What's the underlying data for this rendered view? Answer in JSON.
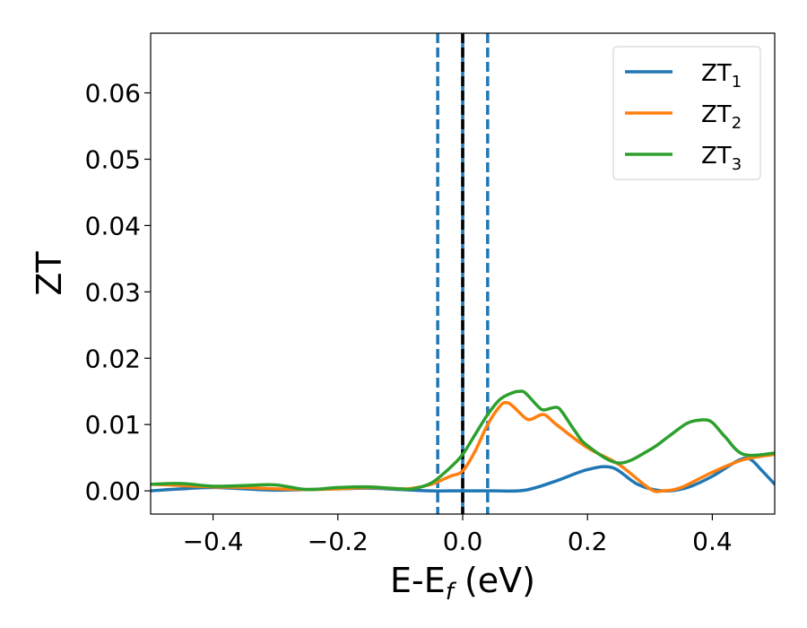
{
  "chart_data": {
    "type": "line",
    "title": "",
    "xlabel": "E-E",
    "xlabel_sub": "f",
    "xlabel_unit": " (eV)",
    "ylabel": "ZT",
    "xlim": [
      -0.5,
      0.5
    ],
    "ylim": [
      -0.0035,
      0.069
    ],
    "xticks": [
      -0.4,
      -0.2,
      0.0,
      0.2,
      0.4
    ],
    "xtick_labels": [
      "−0.4",
      "−0.2",
      "0.0",
      "0.2",
      "0.4"
    ],
    "yticks": [
      0.0,
      0.01,
      0.02,
      0.03,
      0.04,
      0.05,
      0.06
    ],
    "ytick_labels": [
      "0.00",
      "0.01",
      "0.02",
      "0.03",
      "0.04",
      "0.05",
      "0.06"
    ],
    "grid": false,
    "legend": "top-right",
    "vlines": [
      {
        "x": -0.04,
        "style": "dashed",
        "color": "#1f77b4"
      },
      {
        "x": 0.04,
        "style": "dashed",
        "color": "#1f77b4"
      },
      {
        "x": 0.0,
        "style": "solid",
        "color": "#1f77b4"
      },
      {
        "x": 0.0,
        "style": "dashed",
        "color": "#000000"
      }
    ],
    "series": [
      {
        "name": "ZT",
        "name_sub": "1",
        "color": "#1f77b4",
        "x": [
          -0.5,
          -0.45,
          -0.4,
          -0.35,
          -0.3,
          -0.25,
          -0.2,
          -0.15,
          -0.1,
          -0.05,
          0.0,
          0.05,
          0.1,
          0.15,
          0.2,
          0.24,
          0.28,
          0.32,
          0.36,
          0.4,
          0.44,
          0.46,
          0.48,
          0.5
        ],
        "y": [
          0.0,
          0.0003,
          0.0005,
          0.0003,
          0.0001,
          0.0002,
          0.0003,
          0.0004,
          0.0002,
          0.0,
          0.0,
          0.0,
          0.0001,
          0.0015,
          0.0032,
          0.0035,
          0.001,
          0.0,
          0.0005,
          0.0022,
          0.0045,
          0.0048,
          0.003,
          0.001
        ]
      },
      {
        "name": "ZT",
        "name_sub": "2",
        "color": "#ff7f0e",
        "x": [
          -0.5,
          -0.45,
          -0.4,
          -0.35,
          -0.3,
          -0.25,
          -0.2,
          -0.15,
          -0.1,
          -0.08,
          -0.05,
          -0.02,
          0.0,
          0.02,
          0.04,
          0.06,
          0.07,
          0.08,
          0.1,
          0.11,
          0.13,
          0.15,
          0.2,
          0.25,
          0.3,
          0.32,
          0.35,
          0.4,
          0.45,
          0.5
        ],
        "y": [
          0.001,
          0.0008,
          0.0006,
          0.0005,
          0.0003,
          0.0002,
          0.0003,
          0.0005,
          0.0003,
          0.0004,
          0.001,
          0.0022,
          0.003,
          0.006,
          0.01,
          0.0128,
          0.0133,
          0.0128,
          0.011,
          0.0108,
          0.0115,
          0.01,
          0.0065,
          0.004,
          0.0003,
          0.0,
          0.0005,
          0.0028,
          0.0047,
          0.0055
        ]
      },
      {
        "name": "ZT",
        "name_sub": "3",
        "color": "#2ca02c",
        "x": [
          -0.5,
          -0.45,
          -0.4,
          -0.35,
          -0.3,
          -0.25,
          -0.2,
          -0.15,
          -0.1,
          -0.08,
          -0.05,
          -0.02,
          0.0,
          0.02,
          0.04,
          0.06,
          0.08,
          0.09,
          0.1,
          0.12,
          0.13,
          0.15,
          0.16,
          0.18,
          0.2,
          0.25,
          0.3,
          0.33,
          0.36,
          0.385,
          0.4,
          0.42,
          0.45,
          0.5
        ],
        "y": [
          0.001,
          0.0011,
          0.0007,
          0.0008,
          0.0009,
          0.0002,
          0.0005,
          0.0006,
          0.0003,
          0.0003,
          0.0012,
          0.0035,
          0.0055,
          0.0085,
          0.0115,
          0.0138,
          0.0148,
          0.015,
          0.0148,
          0.0128,
          0.0122,
          0.0126,
          0.0118,
          0.009,
          0.0068,
          0.0042,
          0.0062,
          0.0082,
          0.0102,
          0.0107,
          0.0103,
          0.0082,
          0.0055,
          0.0057
        ]
      }
    ]
  }
}
